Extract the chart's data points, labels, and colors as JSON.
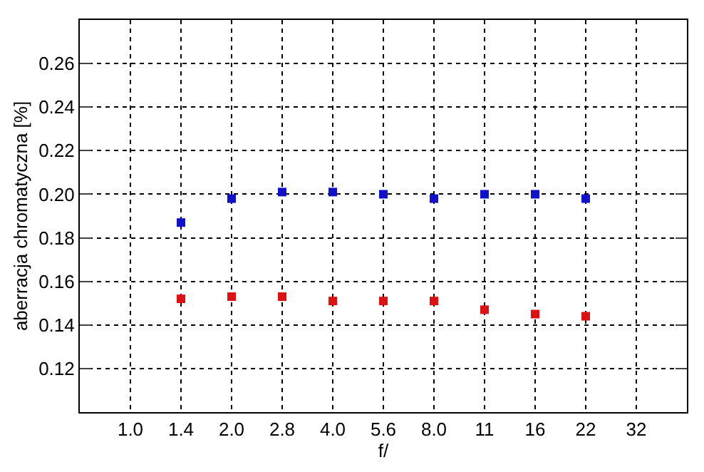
{
  "chart_data": {
    "type": "scatter",
    "xlabel": "f/",
    "ylabel": "aberracja chromatyczna [%]",
    "categories": [
      "1.0",
      "1.4",
      "2.0",
      "2.8",
      "4.0",
      "5.6",
      "8.0",
      "11",
      "16",
      "22",
      "32"
    ],
    "series": [
      {
        "color": "#dd1111",
        "values": [
          null,
          0.152,
          0.153,
          0.153,
          0.151,
          0.151,
          0.151,
          0.147,
          0.145,
          0.144,
          null
        ]
      },
      {
        "color": "#1111cc",
        "values": [
          null,
          0.187,
          0.198,
          0.201,
          0.201,
          0.2,
          0.198,
          0.2,
          0.2,
          0.198,
          null
        ]
      }
    ],
    "ylim": [
      0.1,
      0.28
    ],
    "yticks": [
      0.12,
      0.14,
      0.16,
      0.18,
      {
        "value": 0.2,
        "label": "0.20"
      },
      0.22,
      0.24,
      0.26
    ],
    "grid": true,
    "marker": "square"
  }
}
